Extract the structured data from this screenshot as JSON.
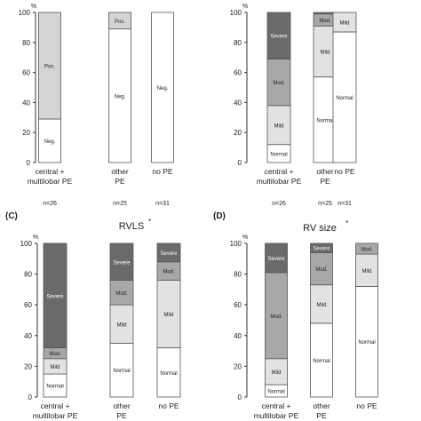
{
  "chart_data": [
    {
      "type": "bar",
      "stacked": true,
      "panel_label": "",
      "title": "",
      "title_marker": "",
      "ylabel": "%",
      "ylim": [
        0,
        100
      ],
      "yticks": [
        0,
        20,
        40,
        60,
        80,
        100
      ],
      "categories": [
        "central + multilobar PE",
        "other PE",
        "no PE"
      ],
      "category_lines": [
        [
          "central +",
          "multilobar PE"
        ],
        [
          "other",
          "PE"
        ],
        [
          "no PE"
        ]
      ],
      "n_labels": [
        "n=26",
        "n=25",
        "n=31"
      ],
      "series": [
        {
          "name": "Neg.",
          "color": "#ffffff",
          "values": [
            29,
            89,
            100
          ]
        },
        {
          "name": "Pos.",
          "color": "#d4d4d4",
          "values": [
            71,
            11,
            0
          ]
        }
      ]
    },
    {
      "type": "bar",
      "stacked": true,
      "panel_label": "",
      "title": "",
      "title_marker": "",
      "ylabel": "%",
      "ylim": [
        0,
        100
      ],
      "yticks": [
        0,
        20,
        40,
        60,
        80,
        100
      ],
      "categories": [
        "central + multilobar PE",
        "other PE",
        "no PE"
      ],
      "category_lines": [
        [
          "central +",
          "multilobar PE"
        ],
        [
          "other",
          "PE"
        ],
        [
          "no PE"
        ]
      ],
      "n_labels": [
        "n=26",
        "n=25",
        "n=31"
      ],
      "series": [
        {
          "name": "Normal",
          "color": "#ffffff",
          "values": [
            12,
            57,
            87
          ]
        },
        {
          "name": "Mild",
          "color": "#e2e2e2",
          "values": [
            26,
            34,
            13
          ]
        },
        {
          "name": "Mod.",
          "color": "#a8a8a8",
          "values": [
            31,
            8,
            0
          ]
        },
        {
          "name": "Severe",
          "color": "#6a6a6a",
          "values": [
            31,
            1,
            0
          ]
        }
      ]
    },
    {
      "type": "bar",
      "stacked": true,
      "panel_label": "(C)",
      "title": "RVLS",
      "title_marker": "*",
      "ylabel": "%",
      "ylim": [
        0,
        100
      ],
      "yticks": [
        0,
        20,
        40,
        60,
        80,
        100
      ],
      "categories": [
        "central + multilobar PE",
        "other PE",
        "no PE"
      ],
      "category_lines": [
        [
          "central +",
          "multilobar PE"
        ],
        [
          "other",
          "PE"
        ],
        [
          "no PE"
        ]
      ],
      "n_labels": [],
      "series": [
        {
          "name": "Normal",
          "color": "#ffffff",
          "values": [
            15,
            35,
            32
          ]
        },
        {
          "name": "Mild",
          "color": "#e2e2e2",
          "values": [
            10,
            25,
            44
          ]
        },
        {
          "name": "Mod.",
          "color": "#a8a8a8",
          "values": [
            7,
            16,
            12
          ]
        },
        {
          "name": "Severe",
          "color": "#6a6a6a",
          "values": [
            68,
            24,
            12
          ]
        }
      ]
    },
    {
      "type": "bar",
      "stacked": true,
      "panel_label": "(D)",
      "title": "RV size",
      "title_marker": "*",
      "ylabel": "%",
      "ylim": [
        0,
        100
      ],
      "yticks": [
        0,
        20,
        40,
        60,
        80,
        100
      ],
      "categories": [
        "central + multilobar PE",
        "other PE",
        "no PE"
      ],
      "category_lines": [
        [
          "central +",
          "multilobar PE"
        ],
        [
          "other",
          "PE"
        ],
        [
          "no PE"
        ]
      ],
      "n_labels": [],
      "series": [
        {
          "name": "Normal",
          "color": "#ffffff",
          "values": [
            8,
            48,
            72
          ]
        },
        {
          "name": "Mild",
          "color": "#e2e2e2",
          "values": [
            17,
            25,
            21
          ]
        },
        {
          "name": "Mod.",
          "color": "#a8a8a8",
          "values": [
            56,
            21,
            7
          ]
        },
        {
          "name": "Severe",
          "color": "#6a6a6a",
          "values": [
            19,
            6,
            0
          ]
        }
      ]
    }
  ]
}
